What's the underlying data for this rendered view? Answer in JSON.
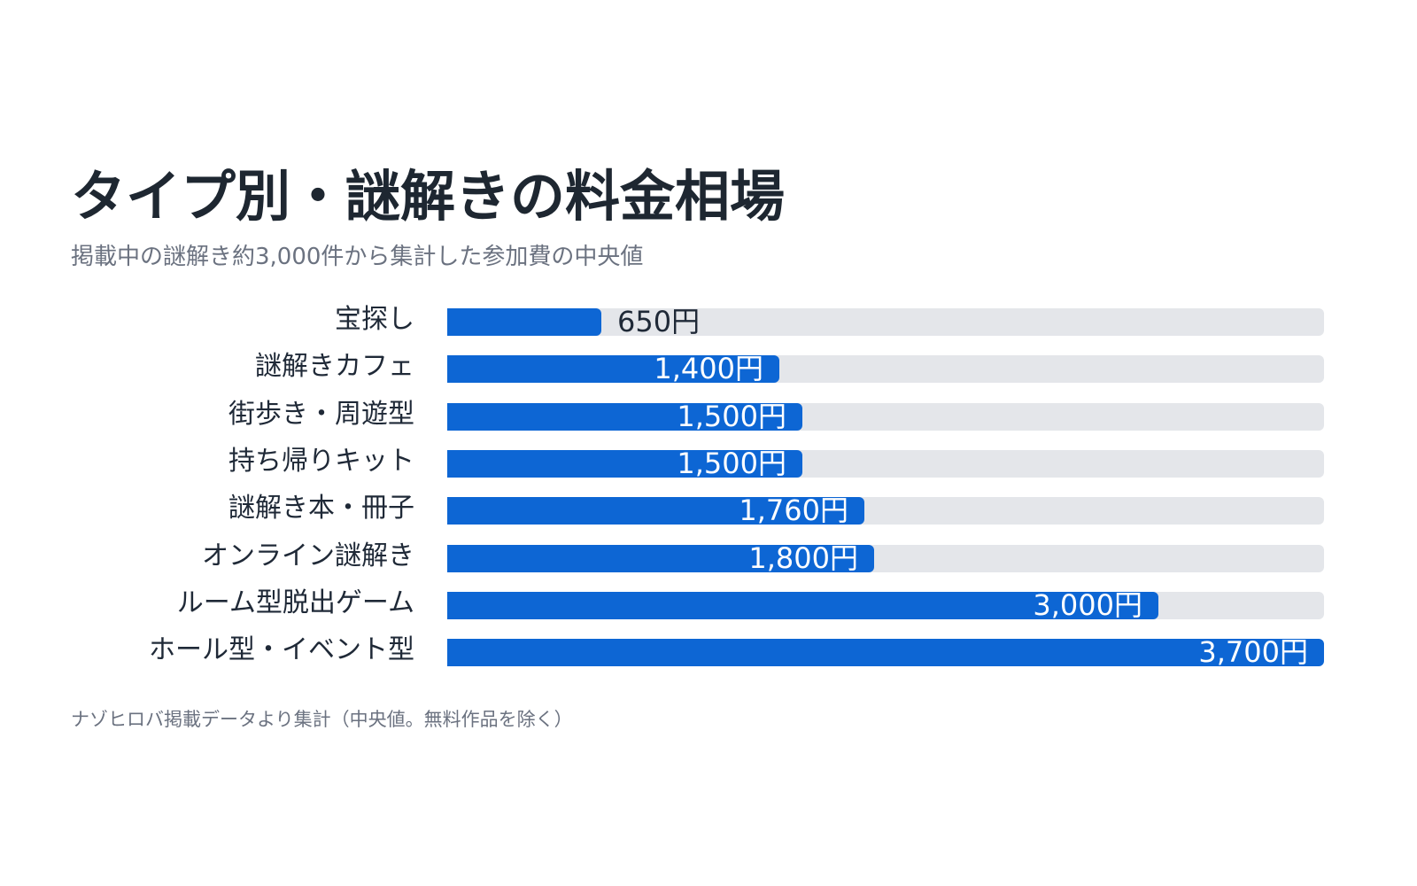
{
  "title": "タイプ別・謎解きの料金相場",
  "subtitle": "掲載中の謎解き約3,000件から集計した参加費の中央値",
  "footnote": "ナゾヒロバ掲載データより集計（中央値。無料作品を除く）",
  "colors": {
    "bar": "#0d66d4",
    "track": "#e4e6ea",
    "title": "#1e2731",
    "muted": "#6b7280"
  },
  "chart_data": {
    "type": "bar",
    "orientation": "horizontal",
    "xlim": [
      0,
      3700
    ],
    "grid": false,
    "categories": [
      "宝探し",
      "謎解きカフェ",
      "街歩き・周遊型",
      "持ち帰りキット",
      "謎解き本・冊子",
      "オンライン謎解き",
      "ルーム型脱出ゲーム",
      "ホール型・イベント型"
    ],
    "values": [
      650,
      1400,
      1500,
      1500,
      1760,
      1800,
      3000,
      3700
    ],
    "value_labels": [
      "650円",
      "1,400円",
      "1,500円",
      "1,500円",
      "1,760円",
      "1,800円",
      "3,000円",
      "3,700円"
    ]
  }
}
